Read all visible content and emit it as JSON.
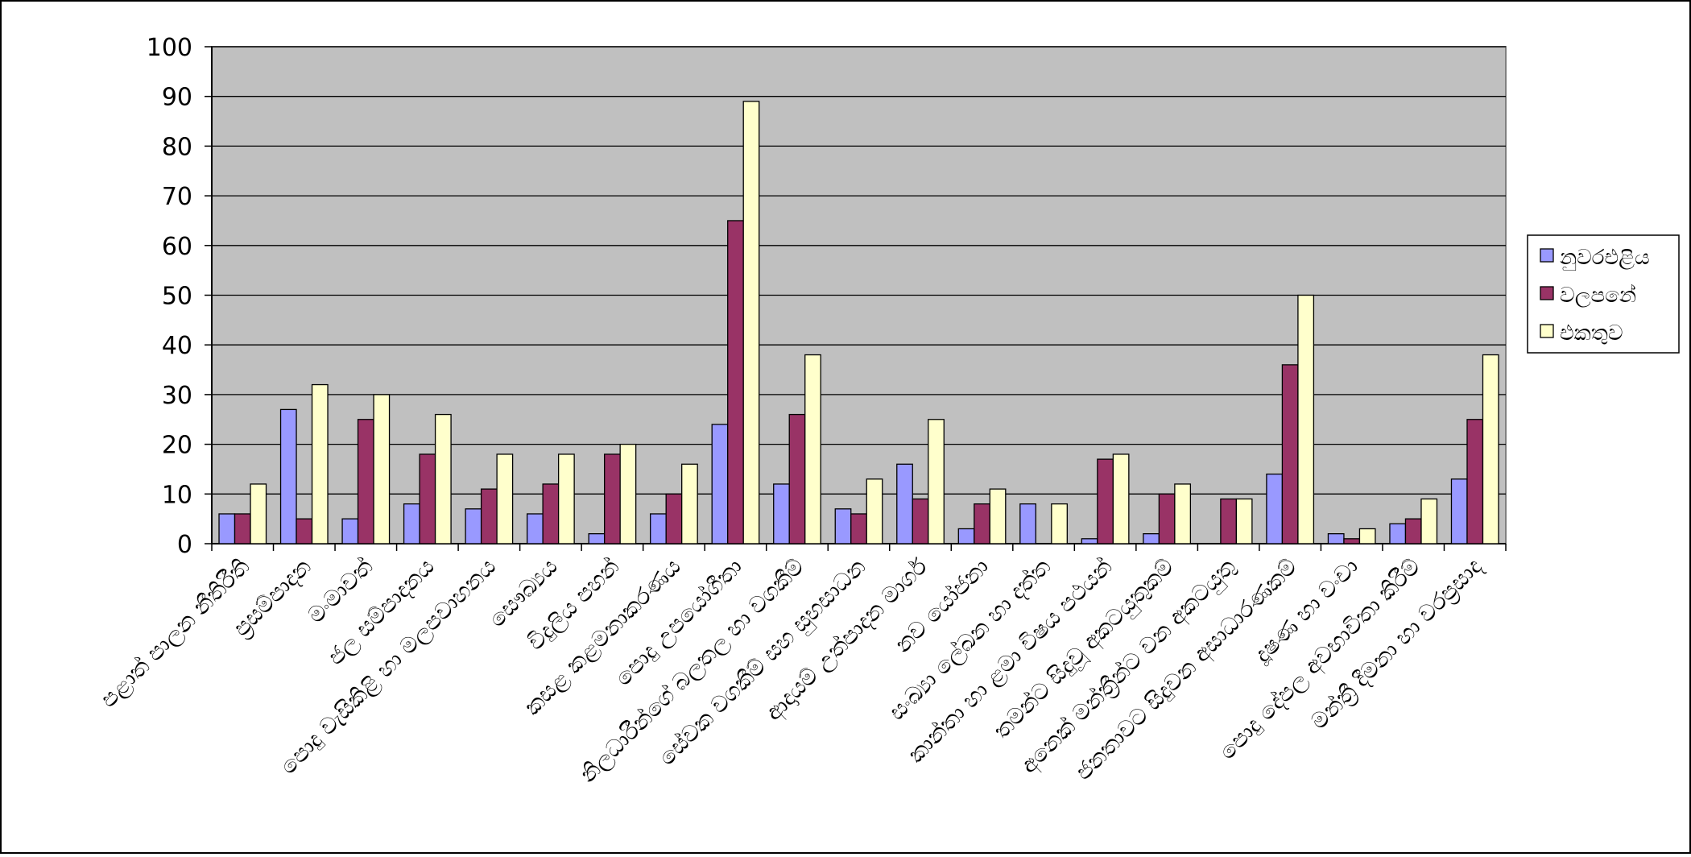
{
  "chart_data": {
    "type": "bar",
    "title": "",
    "xlabel": "",
    "ylabel": "",
    "ylim": [
      0,
      100
    ],
    "yticks": [
      0,
      10,
      20,
      30,
      40,
      50,
      60,
      70,
      80,
      90,
      100
    ],
    "grid": true,
    "legend_position": "right",
    "categories": [
      "පළාත් පාලන නීතිරීති",
      "ප්‍රසම්පාදන",
      "මංමාවත්",
      "ජල සම්පාදනය",
      "පොදු වැසිකිළි හා මලපවාහනය",
      "සෞඛ්‍යය",
      "විදුලිය පහන්",
      "කසළ කළමනාකරණය",
      "පොදු උපයෝගීතා",
      "නිලධාරීන්ගේ බලතල හා වගකීම්",
      "සේවක වගකීම් සහ සුභසාධන",
      "ආදායම් උත්පාදන මාර්ග",
      "නව යෝජනා",
      "සංඛ්‍යා ලේඛන හා දත්ත",
      "කාන්තා හා ළමා විෂය පථයන්",
      "තමන්ට සිදුවූ අකටයුතුකම්",
      "අනෙක් මන්ත්‍රීන්ට වන අකටයුතු",
      "ජනතාවට සිදුවන අසාධාරණකම්",
      "දූෂණ හා වංචා",
      "පොදු දේපල අවභාවිතා කිරීම්",
      "මන්ත්‍රී දීමනා හා වරප්‍රසාද"
    ],
    "series": [
      {
        "name": "නුවරඑළිය",
        "color": "#9999ff",
        "values": [
          6,
          27,
          5,
          8,
          7,
          6,
          2,
          6,
          24,
          12,
          7,
          16,
          3,
          8,
          1,
          2,
          0,
          14,
          2,
          4,
          13
        ]
      },
      {
        "name": "වලපනේ",
        "color": "#993366",
        "values": [
          6,
          5,
          25,
          18,
          11,
          12,
          18,
          10,
          65,
          26,
          6,
          9,
          8,
          0,
          17,
          10,
          9,
          36,
          1,
          5,
          25
        ]
      },
      {
        "name": "එකතුව",
        "color": "#ffffcc",
        "values": [
          12,
          32,
          30,
          26,
          18,
          18,
          20,
          16,
          89,
          38,
          13,
          25,
          11,
          8,
          18,
          12,
          9,
          50,
          3,
          9,
          38
        ]
      }
    ],
    "colors": {
      "plot_background": "#c0c0c0",
      "gridline": "#000000",
      "bar_outline": "#000000"
    }
  }
}
